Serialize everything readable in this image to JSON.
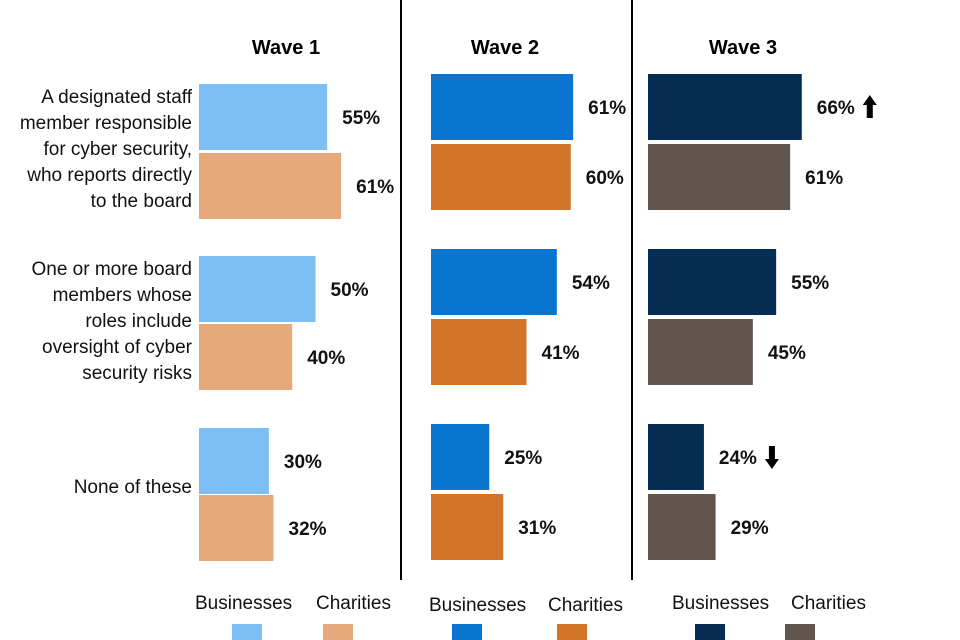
{
  "chart_data": {
    "type": "bar",
    "orientation": "horizontal",
    "panels": [
      "Wave 1",
      "Wave 2",
      "Wave 3"
    ],
    "categories": [
      "A designated staff member responsible for cyber security, who reports directly to the board",
      "One or more board members whose roles include oversight of cyber security risks",
      "None of these"
    ],
    "category_lines": [
      [
        "A designated staff",
        "member responsible",
        "for cyber security,",
        "who reports directly",
        "to the board"
      ],
      [
        "One or more board",
        "members whose",
        "roles include",
        "oversight of cyber",
        "security risks"
      ],
      [
        "None of these"
      ]
    ],
    "series": [
      {
        "name": "Businesses",
        "wave": "Wave 1",
        "values": [
          55,
          50,
          30
        ],
        "labels": [
          "55%",
          "50%",
          "30%"
        ],
        "color": "#7DBFF5"
      },
      {
        "name": "Charities",
        "wave": "Wave 1",
        "values": [
          61,
          40,
          32
        ],
        "labels": [
          "61%",
          "40%",
          "32%"
        ],
        "color": "#E6A97C"
      },
      {
        "name": "Businesses",
        "wave": "Wave 2",
        "values": [
          61,
          54,
          25
        ],
        "labels": [
          "61%",
          "54%",
          "25%"
        ],
        "color": "#0A74D1"
      },
      {
        "name": "Charities",
        "wave": "Wave 2",
        "values": [
          60,
          41,
          31
        ],
        "labels": [
          "60%",
          "41%",
          "31%"
        ],
        "color": "#D07428"
      },
      {
        "name": "Businesses",
        "wave": "Wave 3",
        "values": [
          66,
          55,
          24
        ],
        "labels": [
          "66%",
          "55%",
          "24%"
        ],
        "color": "#052D52",
        "change": [
          "up",
          null,
          "down"
        ]
      },
      {
        "name": "Charities",
        "wave": "Wave 3",
        "values": [
          61,
          45,
          29
        ],
        "labels": [
          "61%",
          "45%",
          "29%"
        ],
        "color": "#62554D"
      }
    ],
    "xlim": [
      0,
      100
    ],
    "grid": false,
    "legend_position": "bottom"
  }
}
